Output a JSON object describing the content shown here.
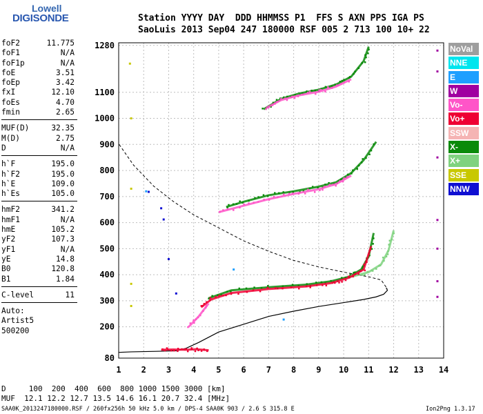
{
  "logo": {
    "line1": "Lowell",
    "line2": "DIGISONDE"
  },
  "header": {
    "labels": "Station YYYY DAY  DDD HHMMSS P1  FFS S AXN PPS IGA PS",
    "values": "SaoLuis 2013 Sep04 247 180000 RSF 005 2 713 100 10+ 22"
  },
  "params": {
    "group1": [
      {
        "name": "foF2",
        "value": "11.775"
      },
      {
        "name": "foF1",
        "value": "N/A"
      },
      {
        "name": "foF1p",
        "value": "N/A"
      },
      {
        "name": "foE",
        "value": "3.51"
      },
      {
        "name": "foEp",
        "value": "3.42"
      },
      {
        "name": "fxI",
        "value": "12.10"
      },
      {
        "name": "foEs",
        "value": "4.70"
      },
      {
        "name": "fmin",
        "value": "2.65"
      }
    ],
    "group2": [
      {
        "name": "MUF(D)",
        "value": "32.35"
      },
      {
        "name": "M(D)",
        "value": "2.75"
      },
      {
        "name": "D",
        "value": "N/A"
      }
    ],
    "group3": [
      {
        "name": "h`F",
        "value": "195.0"
      },
      {
        "name": "h`F2",
        "value": "195.0"
      },
      {
        "name": "h`E",
        "value": "109.0"
      },
      {
        "name": "h`Es",
        "value": "105.0"
      }
    ],
    "group4": [
      {
        "name": "hmF2",
        "value": "341.2"
      },
      {
        "name": "hmF1",
        "value": "N/A"
      },
      {
        "name": "hmE",
        "value": "105.2"
      },
      {
        "name": "yF2",
        "value": "107.3"
      },
      {
        "name": "yF1",
        "value": "N/A"
      },
      {
        "name": "yE",
        "value": "14.8"
      },
      {
        "name": "B0",
        "value": "120.8"
      },
      {
        "name": "B1",
        "value": "1.84"
      }
    ],
    "clevel": {
      "name": "C-level",
      "value": "11"
    },
    "autoscale": [
      "Auto:",
      "Artist5",
      "500200"
    ]
  },
  "legend": [
    {
      "label": "NoVal",
      "color": "#9e9e9e"
    },
    {
      "label": "NNE",
      "color": "#00e5ee"
    },
    {
      "label": "E",
      "color": "#1e9fff"
    },
    {
      "label": "W",
      "color": "#a000a0"
    },
    {
      "label": "Vo-",
      "color": "#ff55c8"
    },
    {
      "label": "Vo+",
      "color": "#ee0033"
    },
    {
      "label": "SSW",
      "color": "#f5b4b4"
    },
    {
      "label": "X-",
      "color": "#0a8a0a"
    },
    {
      "label": "X+",
      "color": "#7fd27f"
    },
    {
      "label": "SSE",
      "color": "#c8c800"
    },
    {
      "label": "NNW",
      "color": "#0f0fd2"
    }
  ],
  "footer": {
    "distance": "D     100  200  400  600  800 1000 1500 3000 [km]",
    "muf": "MUF  12.1 12.2 12.7 13.5 14.6 16.1 20.7 32.4 [MHz]",
    "file": "SAA0K_2013247180000.RSF / 260fx256h 50 kHz 5.0 km / DPS-4 SAA0K 903 / 2.6 S 315.8 E",
    "version": "Ion2Png 1.3.17"
  },
  "chart_data": {
    "type": "scatter",
    "xlabel": "",
    "ylabel": "",
    "xlim": [
      1,
      14
    ],
    "ylim": [
      80,
      1290
    ],
    "x_ticks": [
      1,
      2,
      3,
      4,
      5,
      6,
      7,
      8,
      9,
      10,
      11,
      12,
      13,
      14
    ],
    "y_ticks": [
      80,
      200,
      300,
      400,
      500,
      600,
      700,
      800,
      900,
      1000,
      1100,
      1280
    ],
    "grid": true,
    "legend_position": "right",
    "series": [
      {
        "name": "X-",
        "color": "#0a8a0a",
        "kind": "trace",
        "x": [
          4.6,
          5.5,
          7.0,
          8.5,
          9.5,
          10.2,
          10.7,
          11.0,
          11.2
        ],
        "y": [
          310,
          340,
          352,
          362,
          375,
          392,
          420,
          470,
          560
        ]
      },
      {
        "name": "X+",
        "color": "#7fd27f",
        "kind": "trace",
        "x": [
          10.3,
          11.0,
          11.5,
          11.8,
          12.0
        ],
        "y": [
          392,
          410,
          440,
          495,
          570
        ]
      },
      {
        "name": "Vo+",
        "color": "#ee0033",
        "kind": "trace",
        "x": [
          4.3,
          4.7,
          5.5,
          7.0,
          8.5,
          9.5,
          10.2,
          10.8,
          11.1
        ],
        "y": [
          275,
          305,
          330,
          345,
          355,
          368,
          388,
          420,
          510
        ]
      },
      {
        "name": "Vo-",
        "color": "#ff55c8",
        "kind": "trace",
        "x": [
          3.8,
          4.2,
          4.6
        ],
        "y": [
          200,
          240,
          290
        ]
      },
      {
        "name": "X- (2F2)",
        "color": "#0a8a0a",
        "kind": "trace",
        "x": [
          5.3,
          6.0,
          7.0,
          8.0,
          9.0,
          9.7,
          10.3,
          10.8,
          11.3
        ],
        "y": [
          660,
          680,
          705,
          720,
          738,
          755,
          790,
          840,
          910
        ]
      },
      {
        "name": "Vo- (2F2)",
        "color": "#ff55c8",
        "kind": "trace",
        "x": [
          5.0,
          6.0,
          7.0,
          8.0,
          9.0,
          9.7,
          10.3
        ],
        "y": [
          640,
          665,
          690,
          710,
          728,
          748,
          780
        ]
      },
      {
        "name": "X- (3F2)",
        "color": "#0a8a0a",
        "kind": "trace",
        "x": [
          6.8,
          7.5,
          8.2,
          9.0,
          9.7,
          10.3,
          10.8,
          11.0
        ],
        "y": [
          1035,
          1075,
          1095,
          1110,
          1130,
          1160,
          1220,
          1275
        ]
      },
      {
        "name": "Vo- (3F2)",
        "color": "#ff55c8",
        "kind": "trace",
        "x": [
          6.9,
          7.5,
          8.2,
          9.0,
          9.7,
          10.3
        ],
        "y": [
          1040,
          1070,
          1088,
          1102,
          1122,
          1150
        ]
      },
      {
        "name": "Es",
        "color": "#ee0033",
        "kind": "trace",
        "x": [
          2.7,
          3.2,
          3.7,
          4.1,
          4.6
        ],
        "y": [
          112,
          113,
          112,
          114,
          110
        ]
      },
      {
        "name": "NNW",
        "color": "#0f0fd2",
        "kind": "points",
        "x": [
          2.2,
          2.7,
          2.8,
          3.0,
          3.3
        ],
        "y": [
          718,
          655,
          612,
          460,
          328
        ]
      },
      {
        "name": "E",
        "color": "#1e9fff",
        "kind": "points",
        "x": [
          2.1,
          5.6,
          7.6
        ],
        "y": [
          720,
          420,
          228
        ]
      },
      {
        "name": "SSE",
        "color": "#c8c800",
        "kind": "points",
        "x": [
          1.45,
          1.5,
          1.5,
          1.5,
          1.5
        ],
        "y": [
          1210,
          1000,
          730,
          365,
          280
        ]
      },
      {
        "name": "W",
        "color": "#a000a0",
        "kind": "points",
        "x": [
          13.75,
          13.75,
          13.75,
          13.75,
          13.75,
          13.75,
          13.75
        ],
        "y": [
          1260,
          1180,
          850,
          610,
          500,
          375,
          315
        ]
      }
    ],
    "profile": {
      "x": [
        0.5,
        1.5,
        2.5,
        3.3,
        3.7,
        4.2,
        5.0,
        6.0,
        7.0,
        8.0,
        9.0,
        10.0,
        10.8,
        11.3,
        11.6,
        11.75,
        11.7
      ],
      "y": [
        100,
        104,
        106,
        108,
        118,
        140,
        180,
        210,
        240,
        260,
        278,
        293,
        305,
        315,
        325,
        340,
        350
      ]
    },
    "muf_curve": {
      "x": [
        0.8,
        1.6,
        2.4,
        3.2,
        4.0,
        5.0,
        6.0,
        7.0,
        8.0,
        9.0,
        10.0,
        11.0,
        11.5,
        11.75
      ],
      "y": [
        930,
        820,
        740,
        680,
        630,
        580,
        530,
        490,
        455,
        430,
        410,
        392,
        380,
        345
      ]
    }
  }
}
